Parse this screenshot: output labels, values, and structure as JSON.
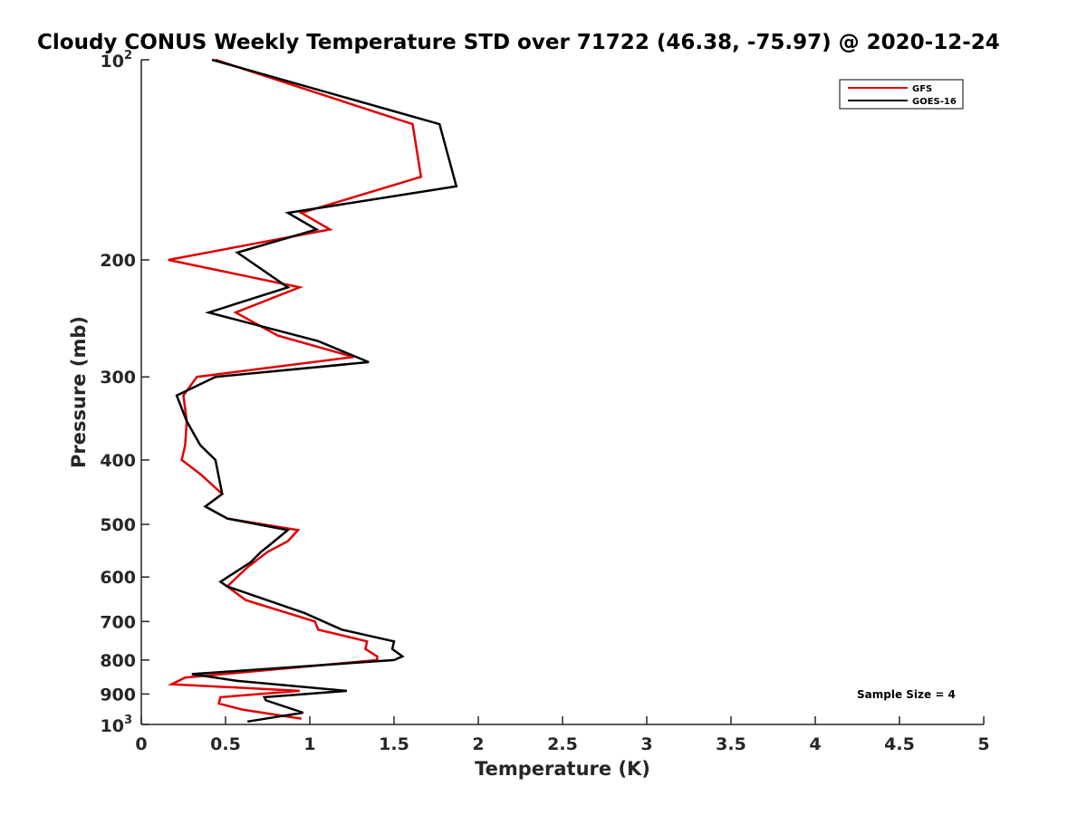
{
  "chart_data": {
    "type": "line",
    "title": "Cloudy CONUS Weekly Temperature STD over 71722 (46.38, -75.97) @ 2020-12-24",
    "xlabel": "Temperature (K)",
    "ylabel": "Pressure (mb)",
    "xlim": [
      0,
      5
    ],
    "ylim": [
      100,
      1000
    ],
    "y_scale": "log",
    "y_reversed": true,
    "grid": false,
    "x_ticks": [
      "0",
      "0.5",
      "1",
      "1.5",
      "2",
      "2.5",
      "3",
      "3.5",
      "4",
      "4.5",
      "5"
    ],
    "y_ticks": [
      {
        "value": 100,
        "base": "10",
        "exp": "2"
      },
      {
        "value": 200,
        "label": "200"
      },
      {
        "value": 300,
        "label": "300"
      },
      {
        "value": 400,
        "label": "400"
      },
      {
        "value": 500,
        "label": "500"
      },
      {
        "value": 600,
        "label": "600"
      },
      {
        "value": 700,
        "label": "700"
      },
      {
        "value": 800,
        "label": "800"
      },
      {
        "value": 900,
        "label": "900"
      },
      {
        "value": 1000,
        "base": "10",
        "exp": "3"
      }
    ],
    "legend_position": "top-right",
    "series": [
      {
        "name": "GFS",
        "color": "#e00000",
        "points": [
          [
            0.44,
            100
          ],
          [
            1.61,
            125
          ],
          [
            1.66,
            150
          ],
          [
            0.95,
            170
          ],
          [
            1.12,
            180
          ],
          [
            0.16,
            200
          ],
          [
            0.94,
            220
          ],
          [
            0.56,
            240
          ],
          [
            0.81,
            260
          ],
          [
            1.26,
            280
          ],
          [
            0.33,
            300
          ],
          [
            0.25,
            320
          ],
          [
            0.27,
            350
          ],
          [
            0.26,
            380
          ],
          [
            0.24,
            400
          ],
          [
            0.35,
            420
          ],
          [
            0.48,
            450
          ],
          [
            0.38,
            470
          ],
          [
            0.51,
            490
          ],
          [
            0.93,
            510
          ],
          [
            0.87,
            530
          ],
          [
            0.75,
            550
          ],
          [
            0.63,
            580
          ],
          [
            0.51,
            620
          ],
          [
            0.62,
            650
          ],
          [
            1.03,
            700
          ],
          [
            1.05,
            720
          ],
          [
            1.34,
            750
          ],
          [
            1.33,
            770
          ],
          [
            1.4,
            790
          ],
          [
            1.4,
            800
          ],
          [
            0.26,
            850
          ],
          [
            0.18,
            870
          ],
          [
            0.94,
            890
          ],
          [
            0.47,
            910
          ],
          [
            0.46,
            930
          ],
          [
            0.6,
            950
          ],
          [
            0.95,
            980
          ]
        ]
      },
      {
        "name": "GOES-16",
        "color": "#000000",
        "points": [
          [
            0.42,
            100
          ],
          [
            1.77,
            125
          ],
          [
            1.87,
            155
          ],
          [
            0.87,
            170
          ],
          [
            1.04,
            180
          ],
          [
            0.57,
            195
          ],
          [
            0.87,
            220
          ],
          [
            0.4,
            240
          ],
          [
            1.05,
            265
          ],
          [
            1.35,
            285
          ],
          [
            0.44,
            300
          ],
          [
            0.21,
            320
          ],
          [
            0.27,
            350
          ],
          [
            0.35,
            380
          ],
          [
            0.44,
            400
          ],
          [
            0.48,
            450
          ],
          [
            0.38,
            470
          ],
          [
            0.51,
            490
          ],
          [
            0.87,
            510
          ],
          [
            0.75,
            540
          ],
          [
            0.71,
            550
          ],
          [
            0.65,
            570
          ],
          [
            0.47,
            610
          ],
          [
            0.51,
            620
          ],
          [
            0.97,
            680
          ],
          [
            1.19,
            720
          ],
          [
            1.5,
            750
          ],
          [
            1.49,
            770
          ],
          [
            1.55,
            790
          ],
          [
            1.5,
            800
          ],
          [
            0.3,
            840
          ],
          [
            0.57,
            860
          ],
          [
            1.22,
            890
          ],
          [
            0.73,
            910
          ],
          [
            0.74,
            920
          ],
          [
            0.96,
            960
          ],
          [
            0.63,
            990
          ]
        ]
      }
    ],
    "annotations": [
      {
        "text": "Sample Size = 4",
        "position": "bottom-right"
      }
    ]
  }
}
